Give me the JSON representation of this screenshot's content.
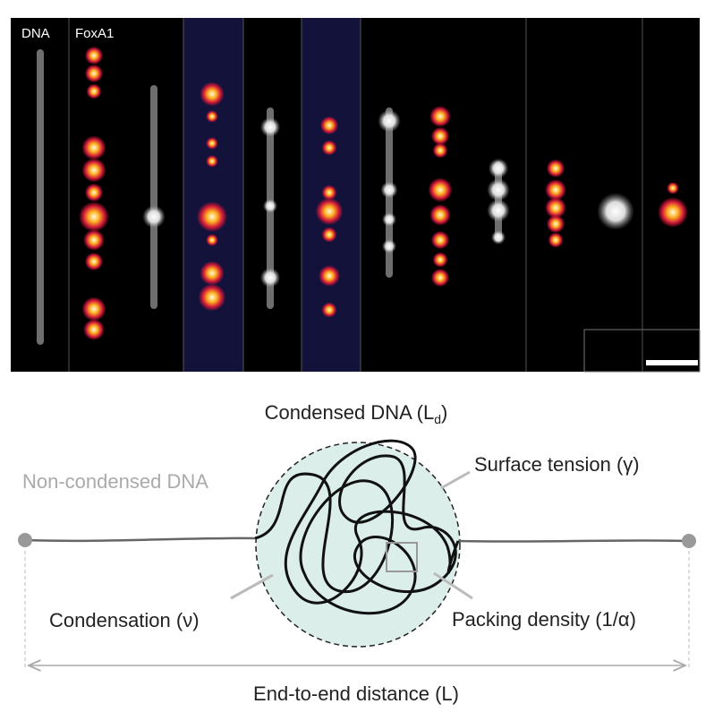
{
  "panel_labels": [
    "DNA",
    "FoxA1"
  ],
  "condensed_label": {
    "text": "Condensed DNA (L",
    "subscript": "d",
    "suffix": ")"
  },
  "labels": {
    "non_condensed": "Non-condensed DNA",
    "surface_tension": "Surface tension (γ)",
    "condensation": "Condensation (ν)",
    "packing_density": "Packing density (1/α)",
    "end_to_end": "End-to-end distance (L)"
  }
}
